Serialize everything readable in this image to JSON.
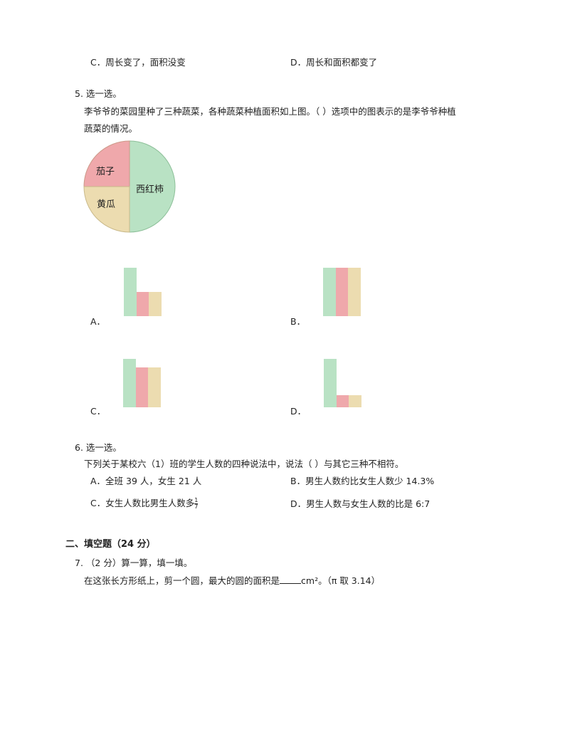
{
  "q4": {
    "option_c": "C．周长变了，面积没变",
    "option_d": "D．周长和面积都变了"
  },
  "q5": {
    "heading": "5. 选一选。",
    "stem_line1": "李爷爷的菜园里种了三种蔬菜，各种蔬菜种植面积如上图。（  ）选项中的图表示的是李爷爷种植",
    "stem_line2": "蔬菜的情况。",
    "pie": {
      "type": "pie",
      "slices": [
        {
          "label": "西红柿",
          "value": 50,
          "color": "#b9e2c4"
        },
        {
          "label": "茄子",
          "value": 25,
          "color": "#efa8ab"
        },
        {
          "label": "黄瓜",
          "value": 25,
          "color": "#ecdcb0"
        }
      ]
    },
    "options": [
      {
        "label": "A．",
        "values": [
          1,
          0.5,
          0.5
        ]
      },
      {
        "label": "B．",
        "values": [
          1,
          1,
          1
        ]
      },
      {
        "label": "C．",
        "values": [
          1,
          0.83,
          0.83
        ]
      },
      {
        "label": "D．",
        "values": [
          1,
          0.25,
          0.25
        ]
      }
    ],
    "bar_colors": [
      "#b9e2c4",
      "#efa8ab",
      "#ecdcb0"
    ]
  },
  "q6": {
    "heading": "6. 选一选。",
    "stem": "下列关于某校六（1）班的学生人数的四种说法中，说法（    ）与其它三种不相符。",
    "option_a": "A．全班 39 人，女生 21 人",
    "option_b": "B．男生人数约比女生人数少 14.3%",
    "option_c": "C．女生人数比男生人数多",
    "option_c_num": "1",
    "option_c_den": "7",
    "option_d": "D．男生人数与女生人数的比是 6:7"
  },
  "section2": {
    "title": "二、填空题（24 分）"
  },
  "q7": {
    "heading": "7. （2 分）算一算，填一填。",
    "stem_before": "在这张长方形纸上，剪一个圆，最大的圆的面积是",
    "stem_after": "cm²。（π 取 3.14）"
  }
}
